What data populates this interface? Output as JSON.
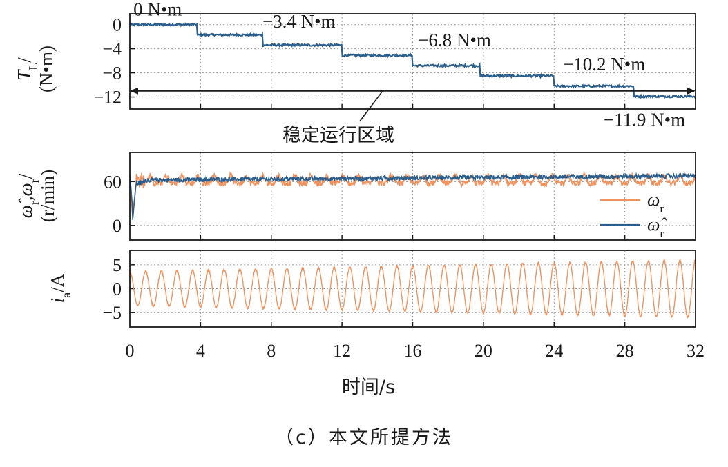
{
  "chart_data": [
    {
      "type": "line",
      "panel": "top",
      "ylabel": "T_L/(N•m)",
      "ylabel_main": "T",
      "ylabel_sub": "L",
      "ylabel_rest": "/",
      "ylabel_unit": "(N•m)",
      "xlim": [
        0,
        32
      ],
      "ylim": [
        -14,
        1.8
      ],
      "yticks": [
        0,
        -4,
        -8,
        -12
      ],
      "ytick_labels": [
        "0",
        "−4",
        "−8",
        "−12"
      ],
      "grid": true,
      "color": "#2b5e8c",
      "series": [
        {
          "name": "T_L",
          "step_times": [
            0,
            3.8,
            7.5,
            12,
            16,
            19.8,
            24,
            28.5,
            32
          ],
          "step_values": [
            0,
            -1.7,
            -3.4,
            -5.1,
            -6.8,
            -8.5,
            -10.2,
            -11.9
          ]
        }
      ],
      "annotations": [
        {
          "text": "0 N•m",
          "x": 0.2,
          "y": 1.5
        },
        {
          "text": "−3.4 N•m",
          "x": 7.5,
          "y": -0.5
        },
        {
          "text": "−6.8 N•m",
          "x": 16.3,
          "y": -3.6
        },
        {
          "text": "−10.2 N•m",
          "x": 24.5,
          "y": -7.6
        },
        {
          "text": "−11.9 N•m",
          "x": 26.8,
          "y": -16.8
        }
      ],
      "region_arrow": {
        "x_start": 0,
        "x_end": 32,
        "y": -11
      },
      "region_label": "稳定运行区域"
    },
    {
      "type": "line",
      "panel": "middle",
      "ylabel": "ω̂_r,ω_r/(r/min)",
      "ylabel_main": "ω̂",
      "ylabel_sub": "r",
      "ylabel_mid": ",ω",
      "ylabel_sub2": "r",
      "ylabel_rest": "/",
      "ylabel_unit": "(r/min)",
      "xlim": [
        0,
        32
      ],
      "ylim": [
        -20,
        100
      ],
      "yticks": [
        60,
        0
      ],
      "ytick_labels": [
        "60",
        "0"
      ],
      "grid": true,
      "series": [
        {
          "name": "ω_r",
          "legend_main": "ω",
          "legend_sub": "r",
          "color": "#f0925e",
          "steady_value": 62
        },
        {
          "name": "ω̂_r",
          "legend_main": "ω̂",
          "legend_sub": "r",
          "color": "#2b5e8c",
          "steady_value": 62
        }
      ],
      "legend": "bottom-right"
    },
    {
      "type": "line",
      "panel": "bottom",
      "ylabel": "i_a/A",
      "ylabel_main": "i",
      "ylabel_sub": "a",
      "ylabel_rest": "/A",
      "xlim": [
        0,
        32
      ],
      "ylim": [
        -8,
        8
      ],
      "yticks": [
        5,
        0,
        -5
      ],
      "ytick_labels": [
        "5",
        "0",
        "−5"
      ],
      "grid": true,
      "xticks": [
        0,
        4,
        8,
        12,
        16,
        20,
        24,
        28,
        32
      ],
      "xtick_labels": [
        "0",
        "4",
        "8",
        "12",
        "16",
        "20",
        "24",
        "28",
        "32"
      ],
      "xlabel": "时间/s",
      "series": [
        {
          "name": "i_a",
          "color": "#f0925e",
          "cycles": 36,
          "amplitude_start": 3.5,
          "amplitude_end": 6.0
        }
      ]
    }
  ],
  "caption": "（c）本文所提方法"
}
